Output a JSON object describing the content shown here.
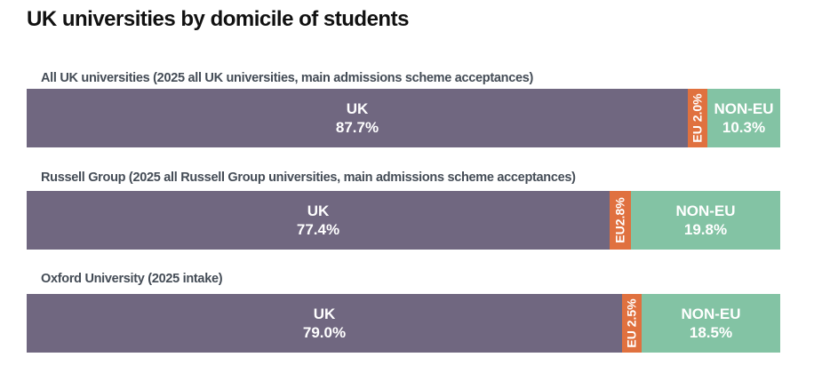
{
  "page": {
    "title": "UK universities by domicile of students"
  },
  "colors": {
    "uk": "#706780",
    "eu": "#e0713f",
    "non_eu": "#83c3a4"
  },
  "chart_data": {
    "type": "bar",
    "orientation": "horizontal",
    "stacked": true,
    "normalized_percent": true,
    "title": "UK universities by domicile of students",
    "legend": "none",
    "grid": false,
    "categories": [
      "All UK universities (2025 all UK universities, main admissions scheme acceptances)",
      "Russell Group (2025 all Russell Group universities, main admissions scheme acceptances)",
      "Oxford University (2025 intake)"
    ],
    "series": [
      {
        "name": "UK",
        "values": [
          87.7,
          77.4,
          79.0
        ],
        "labels": [
          "87.7%",
          "77.4%",
          "79.0%"
        ]
      },
      {
        "name": "EU",
        "values": [
          2.0,
          2.8,
          2.5
        ],
        "labels": [
          "2.0%",
          "2.8%",
          "2.5%"
        ]
      },
      {
        "name": "NON-EU",
        "values": [
          10.3,
          19.8,
          18.5
        ],
        "labels": [
          "10.3%",
          "19.8%",
          "18.5%"
        ]
      }
    ]
  }
}
